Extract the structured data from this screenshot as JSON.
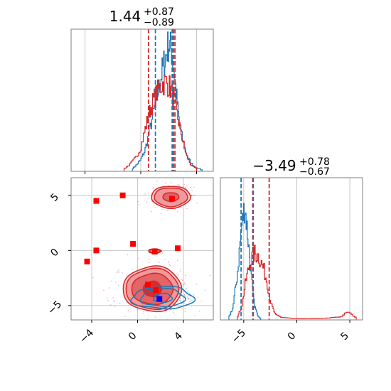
{
  "chart_data": {
    "type": "corner",
    "colors": {
      "blue": "#1f77b4",
      "red": "#d62728",
      "grid": "#c8c8c8",
      "frame": "#7f7f7f"
    },
    "parameters": [
      {
        "title": "1.44",
        "plus": "+0.87",
        "minus": "−0.89",
        "range": [
          -5,
          5.2
        ]
      },
      {
        "title": "−3.49",
        "plus": "+0.78",
        "minus": "−0.67",
        "range": [
          -7.2,
          6.2
        ]
      }
    ],
    "axes": {
      "x_ticks": {
        "values": [
          -4,
          0,
          4
        ],
        "labels": [
          "−4",
          "0",
          "4"
        ]
      },
      "y_ticks": {
        "values": [
          5,
          0,
          -5
        ],
        "labels": [
          "5",
          "0",
          "−5"
        ]
      },
      "x2_ticks": {
        "values": [
          -5,
          0,
          5
        ],
        "labels": [
          "−5",
          "0",
          "5"
        ]
      }
    },
    "marginal_1": {
      "series": [
        {
          "name": "blue",
          "color": "#1f77b4",
          "x": [
            -0.6,
            -0.3,
            0,
            0.3,
            0.6,
            0.9,
            1.2,
            1.4,
            1.6,
            1.8,
            2.0,
            2.2,
            2.4,
            2.6,
            2.8,
            3.1,
            3.4,
            3.8,
            4.4
          ],
          "y": [
            0.02,
            0.05,
            0.09,
            0.16,
            0.3,
            0.45,
            0.6,
            0.7,
            0.82,
            0.9,
            1.0,
            0.95,
            0.78,
            0.55,
            0.35,
            0.2,
            0.1,
            0.04,
            0.01
          ]
        },
        {
          "name": "red",
          "color": "#d62728",
          "x": [
            -1.2,
            -0.8,
            -0.4,
            0,
            0.3,
            0.6,
            0.9,
            1.2,
            1.5,
            1.8,
            2.1,
            2.4,
            2.7,
            3.0,
            3.3,
            3.6,
            4.0
          ],
          "y": [
            0.02,
            0.05,
            0.1,
            0.18,
            0.32,
            0.45,
            0.55,
            0.62,
            0.68,
            0.7,
            0.66,
            0.55,
            0.4,
            0.25,
            0.12,
            0.05,
            0.02
          ]
        }
      ],
      "quantile_lines": [
        {
          "color": "#d62728",
          "x": 0.55
        },
        {
          "color": "#d62728",
          "x": 2.45
        },
        {
          "color": "#1f77b4",
          "x": 1.05
        },
        {
          "color": "#1f77b4",
          "x": 2.25
        },
        {
          "color": "#d62728",
          "x": 2.35
        }
      ]
    },
    "marginal_2": {
      "series": [
        {
          "name": "blue",
          "color": "#1f77b4",
          "x": [
            -6.4,
            -6.0,
            -5.6,
            -5.2,
            -4.9,
            -4.6,
            -4.3,
            -4.0,
            -3.7,
            -3.4
          ],
          "y": [
            0.02,
            0.1,
            0.35,
            0.72,
            0.9,
            0.65,
            0.35,
            0.12,
            0.04,
            0.01
          ]
        },
        {
          "name": "red",
          "color": "#d62728",
          "x": [
            -5.6,
            -5.2,
            -4.8,
            -4.4,
            -4.0,
            -3.6,
            -3.2,
            -2.8,
            -2.4,
            -2.0,
            -1.4,
            0,
            2,
            4,
            4.8,
            5.6
          ],
          "y": [
            0.02,
            0.1,
            0.3,
            0.45,
            0.52,
            0.5,
            0.42,
            0.3,
            0.12,
            0.04,
            0.02,
            0.01,
            0.01,
            0.02,
            0.06,
            0.02
          ]
        }
      ],
      "quantile_lines": [
        {
          "color": "#1f77b4",
          "x": -5.25
        },
        {
          "color": "#1f77b4",
          "x": -4.15
        },
        {
          "color": "#d62728",
          "x": -4.1
        },
        {
          "color": "#d62728",
          "x": -2.6
        }
      ]
    },
    "joint": {
      "xlim": [
        -5.8,
        6.6
      ],
      "ylim": [
        -6.3,
        6.6
      ],
      "blue_cloud": {
        "cx": 2.2,
        "cy": -4.1,
        "sx": 1.2,
        "sy": 0.6,
        "n": 320
      },
      "red_cloud": [
        {
          "cx": 1.5,
          "cy": -3.5,
          "sx": 1.7,
          "sy": 1.2,
          "n": 300
        },
        {
          "cx": 3.0,
          "cy": 4.8,
          "sx": 1.1,
          "sy": 0.6,
          "n": 120
        }
      ],
      "red_contours": [
        {
          "cx": 1.3,
          "cy": -3.5,
          "levels": [
            [
              0.8,
              0.7
            ],
            [
              1.8,
              1.4
            ],
            [
              2.3,
              1.85
            ],
            [
              2.55,
              2.05
            ]
          ]
        },
        {
          "cx": 2.9,
          "cy": 4.85,
          "levels": [
            [
              0.7,
              0.4
            ],
            [
              1.45,
              0.85
            ],
            [
              1.7,
              1.0
            ]
          ]
        },
        {
          "cx": 1.5,
          "cy": -0.05,
          "levels": [
            [
              0.45,
              0.14
            ],
            [
              0.55,
              0.2
            ]
          ]
        }
      ],
      "blue_contours": [
        {
          "cx": 2.2,
          "cy": -4.3,
          "levels": [
            [
              0.8,
              0.4
            ],
            [
              1.9,
              0.8
            ],
            [
              2.7,
              1.0
            ]
          ]
        }
      ],
      "red_points": [
        {
          "x": -4.4,
          "y": -1.0
        },
        {
          "x": -3.6,
          "y": 0.0
        },
        {
          "x": -3.6,
          "y": 4.5
        },
        {
          "x": -1.3,
          "y": 5.0
        },
        {
          "x": -0.4,
          "y": 0.6
        },
        {
          "x": 1.5,
          "y": -0.1
        },
        {
          "x": 3.5,
          "y": 0.2
        },
        {
          "x": 3.0,
          "y": 4.7
        },
        {
          "x": 0.9,
          "y": -3.1
        },
        {
          "x": 1.6,
          "y": -3.6
        }
      ],
      "blue_points": [
        {
          "x": 1.9,
          "y": -4.4
        }
      ]
    }
  }
}
